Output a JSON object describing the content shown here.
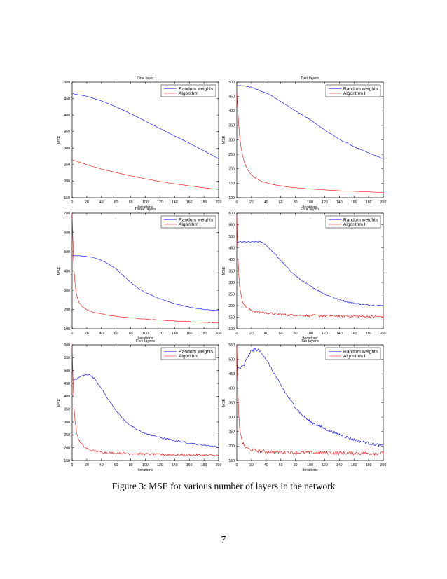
{
  "caption": "Figure 3: MSE for various number of layers in the network",
  "page_number": "7",
  "colors": {
    "random": "#0000ff",
    "algo": "#ff0000"
  },
  "chart_data": [
    {
      "type": "line",
      "title": "One layer",
      "xlabel": "Iterations",
      "ylabel": "MSE",
      "xlim": [
        0,
        200
      ],
      "ylim": [
        150,
        500
      ],
      "xticks": [
        0,
        20,
        40,
        60,
        80,
        100,
        120,
        140,
        160,
        180,
        200
      ],
      "yticks": [
        150,
        200,
        250,
        300,
        350,
        400,
        450,
        500
      ],
      "legend": "top-right",
      "series": [
        {
          "name": "Random weights",
          "color": "#0000ff",
          "noise": 0,
          "x": [
            0,
            20,
            40,
            60,
            80,
            100,
            120,
            140,
            160,
            180,
            200
          ],
          "y": [
            465,
            457,
            443,
            425,
            404,
            382,
            359,
            337,
            315,
            292,
            268
          ]
        },
        {
          "name": "Algorithm I",
          "color": "#ff0000",
          "noise": 0,
          "x": [
            0,
            20,
            40,
            60,
            80,
            100,
            120,
            140,
            160,
            180,
            200
          ],
          "y": [
            265,
            250,
            237,
            226,
            216,
            207,
            199,
            192,
            186,
            180,
            175
          ]
        }
      ]
    },
    {
      "type": "line",
      "title": "Two layers",
      "xlabel": "Iterations",
      "ylabel": "MSE",
      "xlim": [
        0,
        200
      ],
      "ylim": [
        100,
        500
      ],
      "xticks": [
        0,
        20,
        40,
        60,
        80,
        100,
        120,
        140,
        160,
        180,
        200
      ],
      "yticks": [
        100,
        150,
        200,
        250,
        300,
        350,
        400,
        450,
        500
      ],
      "legend": "top-right",
      "series": [
        {
          "name": "Random weights",
          "color": "#0000ff",
          "noise": 1.2,
          "x": [
            0,
            10,
            20,
            30,
            40,
            50,
            60,
            70,
            80,
            90,
            100,
            120,
            140,
            160,
            180,
            200
          ],
          "y": [
            488,
            487,
            482,
            472,
            462,
            449,
            433,
            417,
            400,
            385,
            370,
            334,
            302,
            277,
            255,
            235
          ]
        },
        {
          "name": "Algorithm I",
          "color": "#ff0000",
          "noise": 0,
          "x": [
            0,
            1,
            2,
            3,
            4,
            6,
            8,
            10,
            14,
            18,
            25,
            35,
            50,
            70,
            100,
            140,
            200
          ],
          "y": [
            465,
            420,
            375,
            340,
            310,
            270,
            245,
            225,
            200,
            185,
            168,
            155,
            145,
            137,
            130,
            124,
            118
          ]
        }
      ]
    },
    {
      "type": "line",
      "title": "Three layers",
      "xlabel": "Iterations",
      "ylabel": "MSE",
      "xlim": [
        0,
        200
      ],
      "ylim": [
        100,
        700
      ],
      "xticks": [
        0,
        20,
        40,
        60,
        80,
        100,
        120,
        140,
        160,
        180,
        200
      ],
      "yticks": [
        100,
        200,
        300,
        400,
        500,
        600,
        700
      ],
      "legend": "top-right",
      "series": [
        {
          "name": "Random weights",
          "color": "#0000ff",
          "noise": 1.5,
          "x": [
            0,
            10,
            20,
            30,
            40,
            50,
            60,
            70,
            80,
            90,
            100,
            120,
            140,
            160,
            180,
            200
          ],
          "y": [
            480,
            478,
            475,
            468,
            455,
            435,
            410,
            375,
            340,
            310,
            288,
            255,
            230,
            212,
            200,
            195
          ]
        },
        {
          "name": "Algorithm I",
          "color": "#ff0000",
          "noise": 1.5,
          "x": [
            0,
            1,
            2,
            3,
            4,
            6,
            8,
            10,
            14,
            18,
            25,
            35,
            50,
            70,
            100,
            140,
            200
          ],
          "y": [
            700,
            560,
            450,
            380,
            330,
            280,
            250,
            232,
            215,
            203,
            190,
            180,
            170,
            160,
            150,
            140,
            130
          ]
        }
      ]
    },
    {
      "type": "line",
      "title": "Four layers",
      "xlabel": "Iterations",
      "ylabel": "MSE",
      "xlim": [
        0,
        200
      ],
      "ylim": [
        100,
        600
      ],
      "xticks": [
        0,
        20,
        40,
        60,
        80,
        100,
        120,
        140,
        160,
        180,
        200
      ],
      "yticks": [
        100,
        150,
        200,
        250,
        300,
        350,
        400,
        450,
        500,
        550,
        600
      ],
      "legend": "top-right",
      "series": [
        {
          "name": "Random weights",
          "color": "#0000ff",
          "noise": 3,
          "x": [
            0,
            10,
            20,
            30,
            35,
            40,
            50,
            60,
            70,
            80,
            90,
            100,
            120,
            140,
            160,
            180,
            200
          ],
          "y": [
            475,
            475,
            475,
            477,
            472,
            462,
            430,
            395,
            360,
            330,
            305,
            285,
            250,
            225,
            210,
            203,
            200
          ]
        },
        {
          "name": "Algorithm I",
          "color": "#ff0000",
          "noise": 5,
          "x": [
            0,
            1,
            2,
            3,
            4,
            6,
            8,
            10,
            14,
            18,
            25,
            35,
            50,
            70,
            100,
            140,
            200
          ],
          "y": [
            590,
            470,
            380,
            320,
            280,
            240,
            220,
            205,
            190,
            182,
            175,
            170,
            165,
            160,
            157,
            155,
            152
          ]
        }
      ]
    },
    {
      "type": "line",
      "title": "Five layers",
      "xlabel": "Iterations",
      "ylabel": "MSE",
      "xlim": [
        0,
        200
      ],
      "ylim": [
        150,
        600
      ],
      "xticks": [
        0,
        20,
        40,
        60,
        80,
        100,
        120,
        140,
        160,
        180,
        200
      ],
      "yticks": [
        150,
        200,
        250,
        300,
        350,
        400,
        450,
        500,
        550,
        600
      ],
      "legend": "top-right",
      "series": [
        {
          "name": "Random weights",
          "color": "#0000ff",
          "noise": 3,
          "x": [
            0,
            5,
            10,
            15,
            20,
            25,
            30,
            40,
            50,
            60,
            70,
            80,
            90,
            100,
            120,
            140,
            160,
            180,
            200
          ],
          "y": [
            465,
            465,
            475,
            480,
            485,
            482,
            470,
            430,
            385,
            345,
            310,
            285,
            268,
            255,
            240,
            228,
            218,
            210,
            203
          ]
        },
        {
          "name": "Algorithm I",
          "color": "#ff0000",
          "noise": 4,
          "x": [
            0,
            1,
            2,
            3,
            4,
            6,
            8,
            10,
            14,
            18,
            25,
            35,
            50,
            70,
            100,
            140,
            200
          ],
          "y": [
            600,
            480,
            400,
            340,
            300,
            260,
            240,
            225,
            210,
            200,
            190,
            185,
            180,
            178,
            175,
            172,
            170
          ]
        }
      ]
    },
    {
      "type": "line",
      "title": "Six layers",
      "xlabel": "Iterations",
      "ylabel": "MSE",
      "xlim": [
        0,
        200
      ],
      "ylim": [
        150,
        550
      ],
      "xticks": [
        0,
        20,
        40,
        60,
        80,
        100,
        120,
        140,
        160,
        180,
        200
      ],
      "yticks": [
        150,
        200,
        250,
        300,
        350,
        400,
        450,
        500,
        550
      ],
      "legend": "top-right",
      "series": [
        {
          "name": "Random weights",
          "color": "#0000ff",
          "noise": 5,
          "x": [
            0,
            5,
            10,
            15,
            20,
            25,
            30,
            35,
            40,
            50,
            60,
            70,
            80,
            90,
            100,
            120,
            140,
            160,
            180,
            200
          ],
          "y": [
            470,
            470,
            480,
            510,
            530,
            535,
            530,
            520,
            500,
            455,
            410,
            370,
            335,
            305,
            285,
            260,
            240,
            222,
            210,
            202
          ]
        },
        {
          "name": "Algorithm I",
          "color": "#ff0000",
          "noise": 6,
          "x": [
            0,
            1,
            2,
            3,
            4,
            6,
            8,
            10,
            14,
            18,
            25,
            35,
            50,
            70,
            100,
            140,
            200
          ],
          "y": [
            550,
            440,
            350,
            300,
            260,
            230,
            212,
            200,
            193,
            188,
            185,
            182,
            180,
            178,
            177,
            176,
            175
          ]
        }
      ]
    }
  ]
}
